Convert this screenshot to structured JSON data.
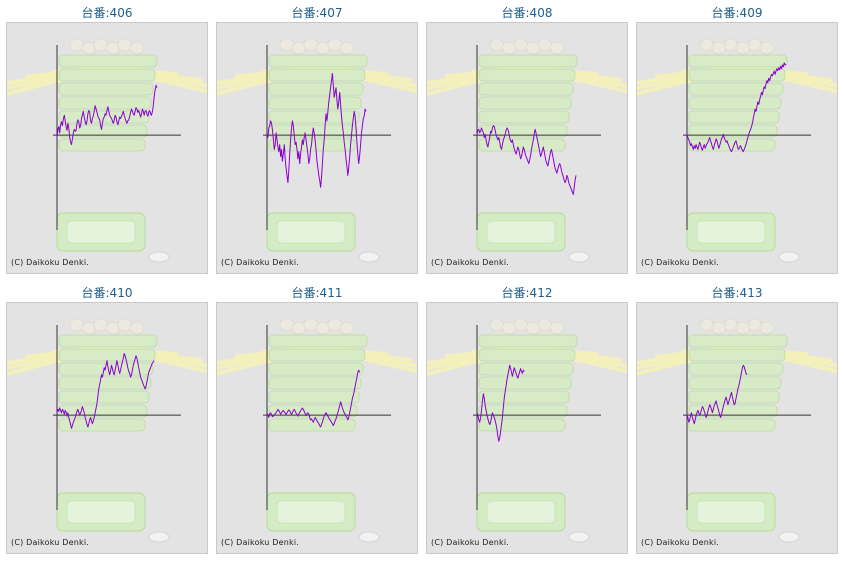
{
  "title_prefix": "台番:",
  "copyright": "(C) Daikoku Denki.",
  "colors": {
    "line": "#8a00d4",
    "axis": "#333333",
    "background": "#e3e3e3",
    "title": "#1f5f8b"
  },
  "chart_data": [
    {
      "type": "line",
      "title": "台番:406",
      "ylim": [
        -2,
        1.9
      ],
      "y_zero": 0,
      "values": [
        -0.05,
        0.12,
        0.18,
        0.05,
        0.22,
        0.28,
        0.2,
        0.35,
        0.42,
        0.3,
        0.18,
        0.1,
        0.25,
        0.15,
        -0.05,
        -0.15,
        -0.2,
        -0.08,
        0.05,
        0.12,
        0.08,
        0.1,
        0.25,
        0.32,
        0.28,
        0.15,
        0.2,
        0.35,
        0.42,
        0.5,
        0.38,
        0.28,
        0.22,
        0.3,
        0.45,
        0.52,
        0.48,
        0.3,
        0.25,
        0.35,
        0.4,
        0.5,
        0.62,
        0.55,
        0.48,
        0.4,
        0.36,
        0.32,
        0.2,
        0.12,
        0.25,
        0.35,
        0.38,
        0.45,
        0.42,
        0.52,
        0.6,
        0.5,
        0.42,
        0.38,
        0.35,
        0.3,
        0.25,
        0.32,
        0.42,
        0.38,
        0.28,
        0.22,
        0.3,
        0.38,
        0.35,
        0.4,
        0.45,
        0.5,
        0.42,
        0.35,
        0.3,
        0.25,
        0.3,
        0.32,
        0.4,
        0.48,
        0.55,
        0.5,
        0.45,
        0.42,
        0.5,
        0.58,
        0.55,
        0.48,
        0.52,
        0.45,
        0.38,
        0.45,
        0.55,
        0.5,
        0.42,
        0.5,
        0.52,
        0.45,
        0.4,
        0.48,
        0.52,
        0.45,
        0.42,
        0.5,
        0.62,
        0.82,
        0.95,
        1.05,
        1.0
      ]
    },
    {
      "type": "line",
      "title": "台番:407",
      "ylim": [
        -2,
        1.9
      ],
      "y_zero": 0,
      "values": [
        0.02,
        -0.05,
        0.15,
        0.2,
        0.3,
        0.25,
        0.12,
        -0.1,
        -0.3,
        -0.2,
        0.05,
        -0.08,
        -0.25,
        -0.35,
        -0.2,
        -0.45,
        -0.3,
        -0.55,
        -0.4,
        -0.2,
        -0.5,
        -0.7,
        -0.85,
        -1.0,
        -0.75,
        -0.4,
        -0.1,
        0.15,
        0.3,
        0.2,
        0.0,
        -0.2,
        -0.15,
        -0.3,
        -0.5,
        -0.35,
        -0.6,
        -0.4,
        -0.25,
        -0.1,
        -0.2,
        -0.05,
        0.05,
        -0.1,
        -0.25,
        -0.4,
        -0.6,
        -0.5,
        -0.3,
        -0.2,
        0.0,
        0.15,
        0.05,
        -0.1,
        -0.3,
        -0.55,
        -0.7,
        -0.85,
        -0.95,
        -1.1,
        -0.9,
        -0.6,
        -0.3,
        -0.1,
        0.2,
        0.45,
        0.3,
        0.5,
        0.7,
        0.85,
        1.0,
        1.15,
        1.3,
        1.05,
        0.8,
        0.9,
        1.0,
        0.75,
        0.55,
        0.7,
        0.9,
        0.65,
        0.4,
        0.2,
        0.05,
        -0.15,
        -0.3,
        -0.5,
        -0.65,
        -0.85,
        -0.7,
        -0.45,
        -0.2,
        0.0,
        0.2,
        0.35,
        0.5,
        0.4,
        0.15,
        -0.15,
        -0.4,
        -0.6,
        -0.45,
        -0.2,
        0.05,
        0.2,
        0.35,
        0.4,
        0.55,
        0.5
      ]
    },
    {
      "type": "line",
      "title": "台番:408",
      "ylim": [
        -2,
        1.9
      ],
      "y_zero": 0,
      "values": [
        0.02,
        0.1,
        0.12,
        0.05,
        0.08,
        0.15,
        0.1,
        0.05,
        -0.05,
        0.02,
        -0.1,
        -0.2,
        -0.25,
        -0.15,
        -0.05,
        0.08,
        0.05,
        0.15,
        0.2,
        0.18,
        0.1,
        0.0,
        -0.05,
        -0.1,
        -0.05,
        -0.15,
        -0.25,
        -0.3,
        -0.2,
        -0.1,
        -0.05,
        0.02,
        0.1,
        0.15,
        0.12,
        0.05,
        -0.05,
        -0.12,
        -0.15,
        -0.1,
        -0.2,
        -0.28,
        -0.35,
        -0.4,
        -0.32,
        -0.25,
        -0.3,
        -0.4,
        -0.5,
        -0.45,
        -0.35,
        -0.25,
        -0.3,
        -0.38,
        -0.45,
        -0.5,
        -0.55,
        -0.6,
        -0.52,
        -0.42,
        -0.3,
        -0.2,
        -0.1,
        0.02,
        0.12,
        0.05,
        -0.05,
        -0.15,
        -0.25,
        -0.35,
        -0.45,
        -0.4,
        -0.32,
        -0.25,
        -0.35,
        -0.45,
        -0.55,
        -0.6,
        -0.65,
        -0.55,
        -0.45,
        -0.35,
        -0.3,
        -0.4,
        -0.5,
        -0.6,
        -0.7,
        -0.75,
        -0.8,
        -0.72,
        -0.65,
        -0.6,
        -0.65,
        -0.75,
        -0.82,
        -0.88,
        -0.95,
        -1.0,
        -0.95,
        -0.85,
        -0.9,
        -1.0,
        -1.05,
        -1.1,
        -1.15,
        -1.2,
        -1.25,
        -1.1,
        -0.95,
        -0.85
      ]
    },
    {
      "type": "line",
      "title": "台番:409",
      "ylim": [
        -2,
        1.9
      ],
      "y_zero": 0,
      "values": [
        0.02,
        -0.05,
        -0.1,
        -0.15,
        -0.22,
        -0.18,
        -0.25,
        -0.3,
        -0.22,
        -0.28,
        -0.2,
        -0.25,
        -0.3,
        -0.22,
        -0.15,
        -0.2,
        -0.28,
        -0.32,
        -0.25,
        -0.2,
        -0.28,
        -0.22,
        -0.18,
        -0.15,
        -0.1,
        -0.05,
        -0.12,
        -0.18,
        -0.25,
        -0.3,
        -0.22,
        -0.15,
        -0.08,
        -0.12,
        -0.2,
        -0.28,
        -0.22,
        -0.15,
        -0.08,
        -0.05,
        0.02,
        -0.05,
        -0.1,
        -0.15,
        -0.12,
        -0.18,
        -0.22,
        -0.28,
        -0.32,
        -0.35,
        -0.3,
        -0.25,
        -0.2,
        -0.15,
        -0.12,
        -0.2,
        -0.28,
        -0.3,
        -0.25,
        -0.22,
        -0.28,
        -0.32,
        -0.35,
        -0.3,
        -0.25,
        -0.2,
        -0.12,
        -0.05,
        0.02,
        0.08,
        0.12,
        0.18,
        0.25,
        0.35,
        0.45,
        0.55,
        0.5,
        0.6,
        0.7,
        0.65,
        0.75,
        0.82,
        0.9,
        0.85,
        0.95,
        1.02,
        0.98,
        1.08,
        1.15,
        1.1,
        1.2,
        1.15,
        1.22,
        1.28,
        1.25,
        1.3,
        1.35,
        1.28,
        1.35,
        1.4,
        1.36,
        1.42,
        1.38,
        1.45,
        1.4,
        1.48,
        1.44,
        1.52,
        1.48,
        1.5
      ]
    },
    {
      "type": "line",
      "title": "台番:410",
      "ylim": [
        -2,
        1.9
      ],
      "y_zero": 0,
      "values": [
        0.05,
        0.12,
        0.08,
        0.15,
        0.1,
        0.05,
        0.12,
        0.08,
        0.02,
        0.1,
        0.06,
        -0.02,
        0.05,
        -0.05,
        -0.12,
        -0.2,
        -0.28,
        -0.22,
        -0.15,
        -0.1,
        -0.05,
        0.02,
        0.08,
        0.12,
        0.06,
        0.0,
        0.05,
        0.1,
        0.18,
        0.12,
        0.05,
        -0.05,
        -0.12,
        -0.2,
        -0.25,
        -0.18,
        -0.1,
        -0.05,
        -0.12,
        -0.18,
        -0.12,
        -0.05,
        0.05,
        0.15,
        0.25,
        0.4,
        0.55,
        0.65,
        0.75,
        0.85,
        0.8,
        0.9,
        1.0,
        0.95,
        1.05,
        1.15,
        1.02,
        0.92,
        0.85,
        0.95,
        1.05,
        0.98,
        0.9,
        0.85,
        0.95,
        1.05,
        1.15,
        1.05,
        0.95,
        0.88,
        0.95,
        1.05,
        1.12,
        1.2,
        1.3,
        1.25,
        1.18,
        1.1,
        1.0,
        0.92,
        0.88,
        0.8,
        0.85,
        0.95,
        1.05,
        1.12,
        1.18,
        1.25,
        1.2,
        1.1,
        1.0,
        0.9,
        0.8,
        0.75,
        0.7,
        0.65,
        0.6,
        0.55,
        0.6,
        0.7,
        0.8,
        0.9,
        0.95,
        1.0,
        1.05,
        1.1,
        1.12,
        1.15
      ]
    },
    {
      "type": "line",
      "title": "台番:411",
      "ylim": [
        -2,
        1.9
      ],
      "y_zero": 0,
      "values": [
        0.0,
        0.02,
        -0.05,
        0.03,
        0.05,
        0.02,
        -0.03,
        -0.02,
        0.0,
        0.03,
        0.05,
        0.08,
        0.12,
        0.1,
        0.06,
        0.02,
        0.05,
        0.08,
        0.1,
        0.07,
        0.04,
        0.02,
        0.05,
        0.08,
        0.11,
        0.09,
        0.05,
        0.02,
        0.05,
        0.1,
        0.12,
        0.08,
        0.04,
        0.02,
        -0.02,
        0.02,
        0.06,
        0.09,
        0.12,
        0.15,
        0.12,
        0.08,
        0.04,
        -0.01,
        0.03,
        0.05,
        0.02,
        -0.05,
        -0.1,
        -0.08,
        -0.12,
        -0.15,
        -0.1,
        -0.05,
        -0.08,
        -0.12,
        -0.15,
        -0.18,
        -0.22,
        -0.25,
        -0.2,
        -0.15,
        -0.08,
        -0.02,
        0.02,
        0.05,
        0.02,
        -0.02,
        -0.06,
        -0.09,
        -0.12,
        -0.15,
        -0.18,
        -0.22,
        -0.18,
        -0.12,
        -0.08,
        -0.02,
        0.05,
        0.12,
        0.2,
        0.28,
        0.22,
        0.15,
        0.1,
        0.05,
        0.02,
        -0.02,
        -0.05,
        -0.1,
        -0.05,
        0.05,
        0.15,
        0.25,
        0.35,
        0.42,
        0.5,
        0.6,
        0.7,
        0.8,
        0.9,
        0.95,
        0.9
      ]
    },
    {
      "type": "line",
      "title": "台番:412",
      "ylim": [
        -2,
        1.9
      ],
      "y_zero": 0,
      "values": [
        0.05,
        0.0,
        -0.1,
        -0.15,
        -0.05,
        0.1,
        0.3,
        0.45,
        0.35,
        0.2,
        0.1,
        0.0,
        -0.08,
        -0.15,
        -0.2,
        -0.15,
        -0.05,
        0.05,
        0.0,
        -0.05,
        -0.12,
        -0.2,
        -0.3,
        -0.45,
        -0.55,
        -0.48,
        -0.35,
        -0.2,
        -0.05,
        0.15,
        0.35,
        0.5,
        0.62,
        0.75,
        0.85,
        0.95,
        1.05,
        0.98,
        0.9,
        0.82,
        0.9,
        1.0,
        0.95,
        0.88,
        0.82,
        0.78,
        0.85,
        0.92,
        0.98,
        0.92,
        0.88,
        0.95,
        0.92
      ]
    },
    {
      "type": "line",
      "title": "台番:413",
      "ylim": [
        -2,
        1.9
      ],
      "y_zero": 0,
      "values": [
        0.0,
        -0.05,
        -0.15,
        -0.1,
        0.0,
        0.05,
        -0.05,
        -0.12,
        -0.18,
        -0.1,
        0.0,
        0.05,
        0.1,
        0.05,
        0.0,
        0.05,
        0.12,
        0.18,
        0.15,
        0.08,
        0.02,
        -0.05,
        0.0,
        0.08,
        0.15,
        0.22,
        0.18,
        0.12,
        0.05,
        0.12,
        0.2,
        0.25,
        0.3,
        0.22,
        0.15,
        0.08,
        0.0,
        -0.05,
        0.02,
        0.1,
        0.18,
        0.25,
        0.32,
        0.38,
        0.3,
        0.22,
        0.28,
        0.35,
        0.42,
        0.48,
        0.38,
        0.3,
        0.22,
        0.25,
        0.35,
        0.45,
        0.55,
        0.62,
        0.7,
        0.8,
        0.9,
        1.0,
        1.05,
        1.02,
        0.95,
        0.88,
        0.85
      ]
    }
  ]
}
